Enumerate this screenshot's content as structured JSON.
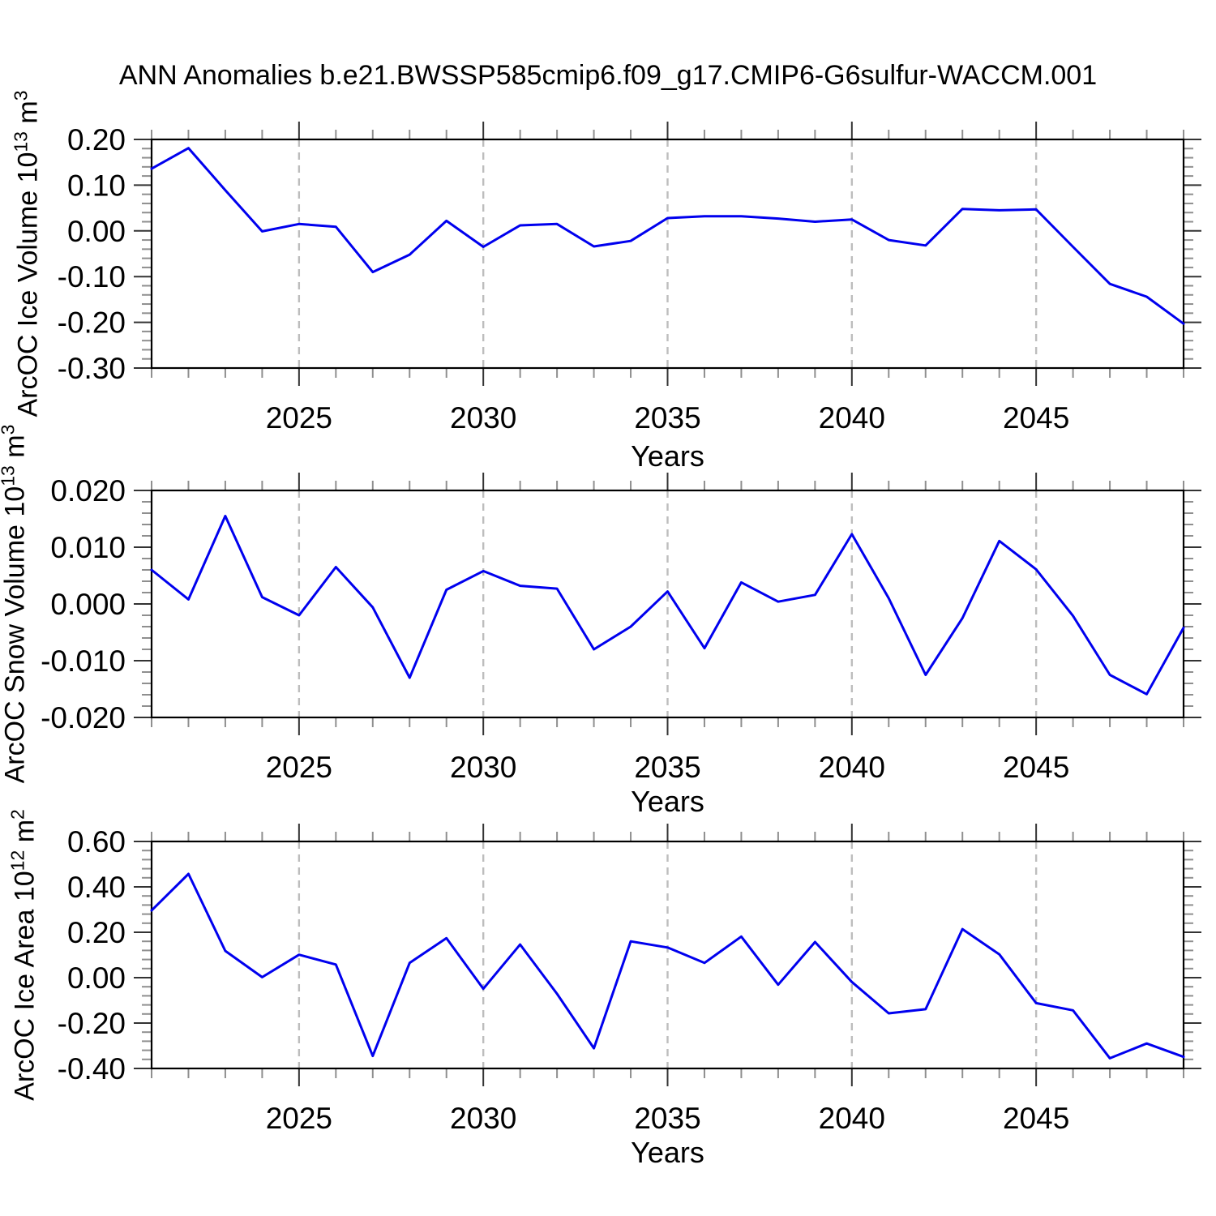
{
  "title": "ANN Anomalies b.e21.BWSSP585cmip6.f09_g17.CMIP6-G6sulfur-WACCM.001",
  "line_color": "#0000EE",
  "grid_color": "#bdbdbd",
  "years": [
    2021,
    2022,
    2023,
    2024,
    2025,
    2026,
    2027,
    2028,
    2029,
    2030,
    2031,
    2032,
    2033,
    2034,
    2035,
    2036,
    2037,
    2038,
    2039,
    2040,
    2041,
    2042,
    2043,
    2044,
    2045,
    2046,
    2047,
    2048,
    2049
  ],
  "x_axis": {
    "label": "Years",
    "range": [
      2021,
      2049
    ],
    "major_ticks": [
      2025,
      2030,
      2035,
      2040,
      2045
    ],
    "major_tick_labels": [
      "2025",
      "2030",
      "2035",
      "2040",
      "2045"
    ],
    "minor_tick_step": 1
  },
  "chart_data": [
    {
      "type": "line",
      "name": "ArcOC Ice Volume",
      "xlabel": "Years",
      "ylabel": {
        "p1": "ArcOC Ice Volume 10",
        "s1": "13",
        "p2": " m",
        "s2": "3"
      },
      "ylim": [
        -0.3,
        0.2
      ],
      "yticks": {
        "values": [
          0.2,
          0.1,
          0.0,
          -0.1,
          -0.2,
          -0.3
        ],
        "labels": [
          "0.20",
          "0.10",
          "0.00",
          "-0.10",
          "-0.20",
          "-0.30"
        ]
      },
      "y_minor_step": 0.02,
      "values": [
        0.136,
        0.181,
        0.089,
        -0.001,
        0.015,
        0.009,
        -0.09,
        -0.052,
        0.022,
        -0.035,
        0.012,
        0.015,
        -0.034,
        -0.022,
        0.028,
        0.032,
        0.032,
        0.027,
        0.02,
        0.025,
        -0.02,
        -0.032,
        0.048,
        0.045,
        0.047,
        -0.035,
        -0.116,
        -0.144,
        -0.203
      ]
    },
    {
      "type": "line",
      "name": "ArcOC Snow Volume",
      "xlabel": "Years",
      "ylabel": {
        "p1": "ArcOC Snow Volume 10",
        "s1": "13",
        "p2": " m",
        "s2": "3"
      },
      "ylim": [
        -0.02,
        0.02
      ],
      "yticks": {
        "values": [
          0.02,
          0.01,
          0.0,
          -0.01,
          -0.02
        ],
        "labels": [
          "0.020",
          "0.010",
          "0.000",
          "-0.010",
          "-0.020"
        ]
      },
      "y_minor_step": 0.002,
      "values": [
        0.006,
        0.0008,
        0.0155,
        0.0012,
        -0.002,
        0.0065,
        -0.0006,
        -0.013,
        0.0025,
        0.0058,
        0.0032,
        0.0027,
        -0.008,
        -0.004,
        0.0022,
        -0.0078,
        0.0038,
        0.0004,
        0.0016,
        0.0123,
        0.001,
        -0.0125,
        -0.0025,
        0.0111,
        0.0061,
        -0.0021,
        -0.0125,
        -0.0159,
        -0.0042
      ]
    },
    {
      "type": "line",
      "name": "ArcOC Ice Area",
      "xlabel": "Years",
      "ylabel": {
        "p1": "ArcOC Ice Area 10",
        "s1": "12",
        "p2": " m",
        "s2": "2"
      },
      "ylim": [
        -0.4,
        0.6
      ],
      "yticks": {
        "values": [
          0.6,
          0.4,
          0.2,
          0.0,
          -0.2,
          -0.4
        ],
        "labels": [
          "0.60",
          "0.40",
          "0.20",
          "0.00",
          "-0.20",
          "-0.40"
        ]
      },
      "y_minor_step": 0.04,
      "values": [
        0.296,
        0.457,
        0.118,
        0.002,
        0.101,
        0.058,
        -0.345,
        0.065,
        0.174,
        -0.049,
        0.146,
        -0.071,
        -0.311,
        0.16,
        0.133,
        0.065,
        0.181,
        -0.031,
        0.157,
        -0.019,
        -0.157,
        -0.139,
        0.214,
        0.103,
        -0.112,
        -0.144,
        -0.355,
        -0.29,
        -0.349
      ]
    }
  ]
}
